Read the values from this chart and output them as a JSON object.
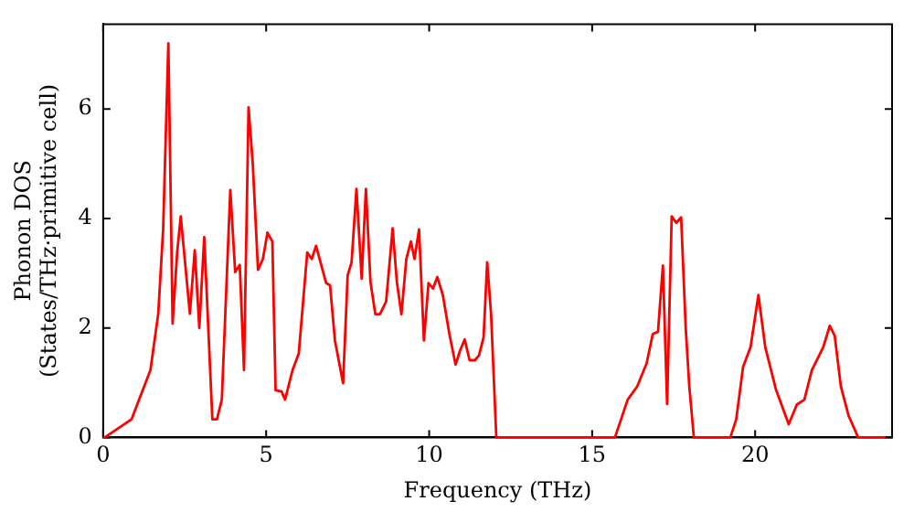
{
  "chart_data": {
    "type": "line",
    "xlabel": "Frequency (THz)",
    "ylabel": "Phonon DOS\n(States/THz·primitive cell)",
    "x": [
      0,
      0.05,
      0.87,
      1.45,
      1.69,
      1.84,
      2.0,
      2.13,
      2.27,
      2.38,
      2.66,
      2.81,
      2.95,
      3.1,
      3.35,
      3.49,
      3.64,
      3.9,
      4.05,
      4.19,
      4.32,
      4.46,
      4.59,
      4.75,
      4.9,
      5.04,
      5.19,
      5.29,
      5.47,
      5.58,
      5.81,
      6.0,
      6.26,
      6.4,
      6.53,
      6.84,
      6.96,
      7.11,
      7.36,
      7.5,
      7.62,
      7.77,
      7.93,
      8.06,
      8.2,
      8.35,
      8.49,
      8.68,
      8.88,
      9.01,
      9.15,
      9.3,
      9.44,
      9.55,
      9.69,
      9.84,
      9.98,
      10.12,
      10.25,
      10.42,
      10.62,
      10.81,
      10.95,
      11.09,
      11.24,
      11.4,
      11.53,
      11.67,
      11.78,
      11.9,
      12.06,
      15.7,
      16.09,
      16.38,
      16.67,
      16.86,
      17.02,
      17.17,
      17.3,
      17.44,
      17.58,
      17.73,
      17.87,
      17.98,
      18.12,
      19.24,
      19.42,
      19.63,
      19.86,
      20.1,
      20.31,
      20.64,
      21.03,
      21.28,
      21.51,
      21.74,
      22.09,
      22.29,
      22.44,
      22.63,
      22.87,
      23.16,
      24.0
    ],
    "series": [
      {
        "color": "#ff0000",
        "values": [
          0,
          0,
          0.33,
          1.23,
          2.26,
          3.8,
          7.2,
          2.08,
          3.38,
          4.04,
          2.26,
          3.42,
          2.0,
          3.66,
          0.33,
          0.33,
          0.69,
          4.52,
          3.02,
          3.15,
          1.23,
          6.03,
          5.0,
          3.06,
          3.26,
          3.74,
          3.58,
          0.86,
          0.84,
          0.69,
          1.23,
          1.53,
          3.38,
          3.26,
          3.5,
          2.82,
          2.78,
          1.77,
          0.99,
          2.96,
          3.2,
          4.54,
          2.9,
          4.54,
          2.84,
          2.25,
          2.25,
          2.48,
          3.82,
          2.84,
          2.25,
          3.26,
          3.58,
          3.26,
          3.8,
          1.77,
          2.82,
          2.72,
          2.93,
          2.6,
          1.89,
          1.33,
          1.59,
          1.79,
          1.41,
          1.41,
          1.5,
          1.83,
          3.2,
          2.25,
          0,
          0,
          0.69,
          0.93,
          1.35,
          1.89,
          1.93,
          3.14,
          0.61,
          4.04,
          3.92,
          4.02,
          2.0,
          0.93,
          0,
          0,
          0.33,
          1.29,
          1.65,
          2.6,
          1.65,
          0.87,
          0.24,
          0.6,
          0.69,
          1.23,
          1.65,
          2.04,
          1.86,
          0.93,
          0.39,
          0,
          0
        ]
      }
    ],
    "xlim": [
      0,
      24.2
    ],
    "ylim": [
      0,
      7.55
    ],
    "xticks": [
      0,
      5,
      10,
      15,
      20
    ],
    "yticks": [
      0,
      2,
      4,
      6
    ],
    "grid": false,
    "legend": false,
    "marker": "none",
    "line_style": "solid"
  }
}
